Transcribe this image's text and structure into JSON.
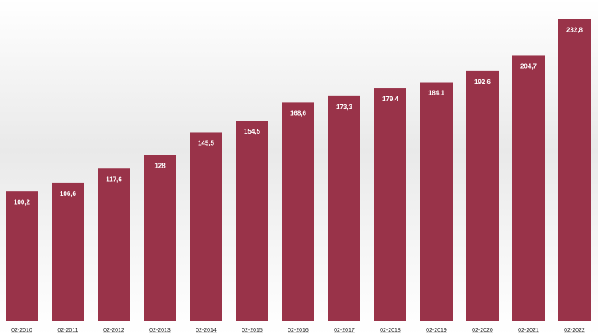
{
  "chart_data": {
    "type": "bar",
    "categories": [
      "02-2010",
      "02-2011",
      "02-2012",
      "02-2013",
      "02-2014",
      "02-2015",
      "02-2016",
      "02-2017",
      "02-2018",
      "02-2019",
      "02-2020",
      "02-2021",
      "02-2022"
    ],
    "values": [
      100.2,
      106.6,
      117.6,
      128,
      145.5,
      154.5,
      168.6,
      173.3,
      179.4,
      184.1,
      192.6,
      204.7,
      232.8
    ],
    "value_labels": [
      "100,2",
      "106,6",
      "117,6",
      "128",
      "145,5",
      "154,5",
      "168,6",
      "173,3",
      "179,4",
      "184,1",
      "192,6",
      "204,7",
      "232,8"
    ],
    "color": "#993349"
  }
}
